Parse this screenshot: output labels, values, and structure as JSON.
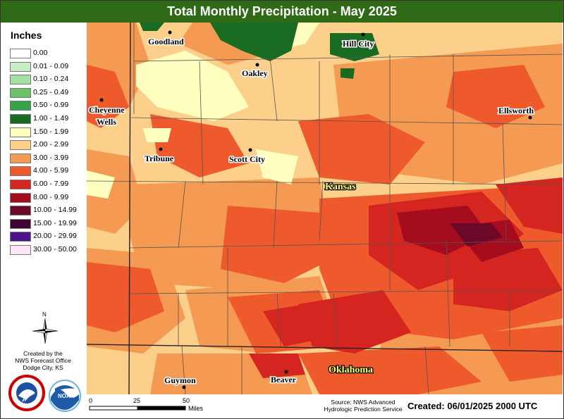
{
  "title": "Total Monthly Precipitation - May 2025",
  "legend": {
    "title": "Inches",
    "items": [
      {
        "label": "0.00",
        "color": "#ffffff"
      },
      {
        "label": "0.01 - 0.09",
        "color": "#c6edc6"
      },
      {
        "label": "0.10 - 0.24",
        "color": "#a3e0a3"
      },
      {
        "label": "0.25 - 0.49",
        "color": "#6bc26b"
      },
      {
        "label": "0.50 - 0.99",
        "color": "#33a345"
      },
      {
        "label": "1.00 - 1.49",
        "color": "#1a6b22"
      },
      {
        "label": "1.50 - 1.99",
        "color": "#ffffbf"
      },
      {
        "label": "2.00 - 2.99",
        "color": "#fcd08a"
      },
      {
        "label": "3.00 - 3.99",
        "color": "#f49a52"
      },
      {
        "label": "4.00 - 5.99",
        "color": "#ef5a2d"
      },
      {
        "label": "6.00 - 7.99",
        "color": "#d42520"
      },
      {
        "label": "8.00 - 9.99",
        "color": "#a50c1e"
      },
      {
        "label": "10.00 - 14.99",
        "color": "#6e0829"
      },
      {
        "label": "15.00 - 19.99",
        "color": "#3d0633"
      },
      {
        "label": "20.00 - 29.99",
        "color": "#4b138c"
      },
      {
        "label": "30.00 - 50.00",
        "color": "#fde4f7"
      }
    ]
  },
  "places": {
    "goodland": "Goodland",
    "hill_city": "Hill City",
    "oakley": "Oakley",
    "cheyenne_wells_1": "Cheyenne",
    "cheyenne_wells_2": "Wells",
    "ellsworth": "Ellsworth",
    "tribune": "Tribune",
    "scott_city": "Scott City",
    "kansas": "Kansas",
    "guymon": "Guymon",
    "beaver": "Beaver",
    "oklahoma": "Oklahoma"
  },
  "compass_label": "N",
  "credit": [
    "Created by the",
    "NWS Forecast Office",
    "Dodge City, KS"
  ],
  "scale": {
    "ticks": [
      "0",
      "25",
      "50"
    ],
    "unit": "Miles"
  },
  "source": [
    "Source: NWS Advanced",
    "Hydrologic Prediction Service"
  ],
  "created": "Created: 06/01/2025 2000 UTC"
}
